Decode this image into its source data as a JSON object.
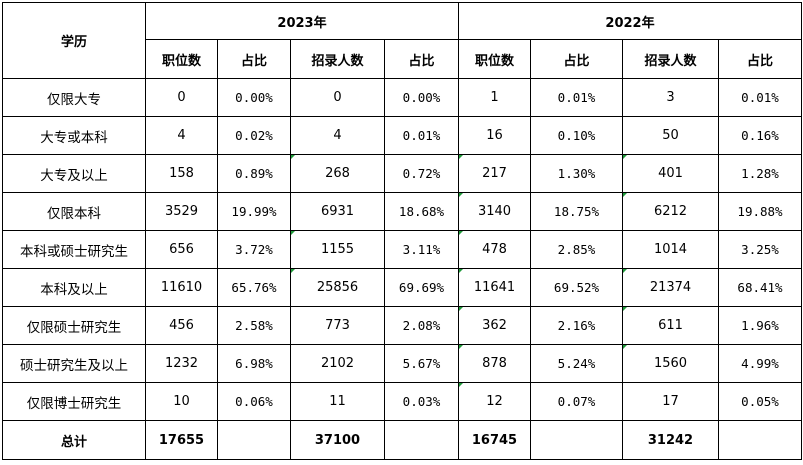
{
  "header": {
    "edu_label": "学历",
    "year_2023": "2023年",
    "year_2022": "2022年",
    "cols": [
      "职位数",
      "占比",
      "招录人数",
      "占比",
      "职位数",
      "占比",
      "招录人数",
      "占比"
    ]
  },
  "rows": [
    {
      "edu": "仅限大专",
      "v": [
        "0",
        "0.00%",
        "0",
        "0.00%",
        "1",
        "0.01%",
        "3",
        "0.01%"
      ]
    },
    {
      "edu": "大专或本科",
      "v": [
        "4",
        "0.02%",
        "4",
        "0.01%",
        "16",
        "0.10%",
        "50",
        "0.16%"
      ]
    },
    {
      "edu": "大专及以上",
      "v": [
        "158",
        "0.89%",
        "268",
        "0.72%",
        "217",
        "1.30%",
        "401",
        "1.28%"
      ]
    },
    {
      "edu": "仅限本科",
      "v": [
        "3529",
        "19.99%",
        "6931",
        "18.68%",
        "3140",
        "18.75%",
        "6212",
        "19.88%"
      ]
    },
    {
      "edu": "本科或硕士研究生",
      "v": [
        "656",
        "3.72%",
        "1155",
        "3.11%",
        "478",
        "2.85%",
        "1014",
        "3.25%"
      ]
    },
    {
      "edu": "本科及以上",
      "v": [
        "11610",
        "65.76%",
        "25856",
        "69.69%",
        "11641",
        "69.52%",
        "21374",
        "68.41%"
      ]
    },
    {
      "edu": "仅限硕士研究生",
      "v": [
        "456",
        "2.58%",
        "773",
        "2.08%",
        "362",
        "2.16%",
        "611",
        "1.96%"
      ]
    },
    {
      "edu": "硕士研究生及以上",
      "v": [
        "1232",
        "6.98%",
        "2102",
        "5.67%",
        "878",
        "5.24%",
        "1560",
        "4.99%"
      ]
    },
    {
      "edu": "仅限博士研究生",
      "v": [
        "10",
        "0.06%",
        "11",
        "0.03%",
        "12",
        "0.07%",
        "17",
        "0.05%"
      ]
    }
  ],
  "total": {
    "label": "总计",
    "v": [
      "17655",
      "",
      "37100",
      "",
      "16745",
      "",
      "31242",
      ""
    ]
  },
  "colors": {
    "border": "#000000",
    "comment_mark": "#1f9a3a"
  }
}
